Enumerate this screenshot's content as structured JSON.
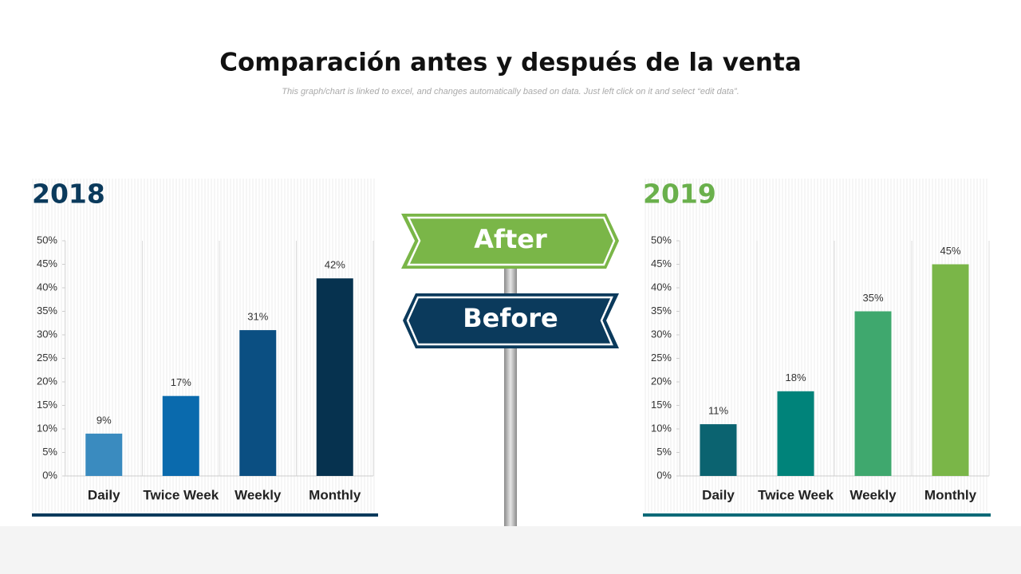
{
  "header": {
    "title": "Comparación antes y después de la venta",
    "subtitle": "This graph/chart is linked to excel, and changes automatically based on data. Just left click on it and select “edit data”."
  },
  "signs": {
    "after": "After",
    "before": "Before"
  },
  "chart_data": [
    {
      "type": "bar",
      "title": "2018",
      "title_color": "#0b3a5c",
      "rule_color": "#0b3a5c",
      "categories": [
        "Daily",
        "Twice Week",
        "Weekly",
        "Monthly"
      ],
      "values": [
        9,
        17,
        31,
        42
      ],
      "value_labels": [
        "9%",
        "17%",
        "31%",
        "42%"
      ],
      "colors": [
        "#3a8bbf",
        "#0a6aad",
        "#0b4f82",
        "#06324f"
      ],
      "ylim": [
        0,
        50
      ],
      "yticks": [
        {
          "value": 0,
          "label": "0%"
        },
        {
          "value": 5,
          "label": "5%"
        },
        {
          "value": 10,
          "label": "10%"
        },
        {
          "value": 15,
          "label": "15%"
        },
        {
          "value": 20,
          "label": "20%"
        },
        {
          "value": 25,
          "label": "25%"
        },
        {
          "value": 30,
          "label": "30%"
        },
        {
          "value": 35,
          "label": "35%"
        },
        {
          "value": 40,
          "label": "40%"
        },
        {
          "value": 45,
          "label": "45%"
        },
        {
          "value": 50,
          "label": "50%"
        }
      ]
    },
    {
      "type": "bar",
      "title": "2019",
      "title_color": "#6ab04c",
      "rule_color": "#0d6a78",
      "categories": [
        "Daily",
        "Twice Week",
        "Weekly",
        "Monthly"
      ],
      "values": [
        11,
        18,
        35,
        45
      ],
      "value_labels": [
        "11%",
        "18%",
        "35%",
        "45%"
      ],
      "colors": [
        "#0b6370",
        "#00837a",
        "#3fa86e",
        "#7ab648"
      ],
      "ylim": [
        0,
        50
      ],
      "yticks": [
        {
          "value": 0,
          "label": "0%"
        },
        {
          "value": 5,
          "label": "5%"
        },
        {
          "value": 10,
          "label": "10%"
        },
        {
          "value": 15,
          "label": "15%"
        },
        {
          "value": 20,
          "label": "20%"
        },
        {
          "value": 25,
          "label": "25%"
        },
        {
          "value": 30,
          "label": "30%"
        },
        {
          "value": 35,
          "label": "35%"
        },
        {
          "value": 40,
          "label": "40%"
        },
        {
          "value": 45,
          "label": "45%"
        },
        {
          "value": 50,
          "label": "50%"
        }
      ]
    }
  ]
}
